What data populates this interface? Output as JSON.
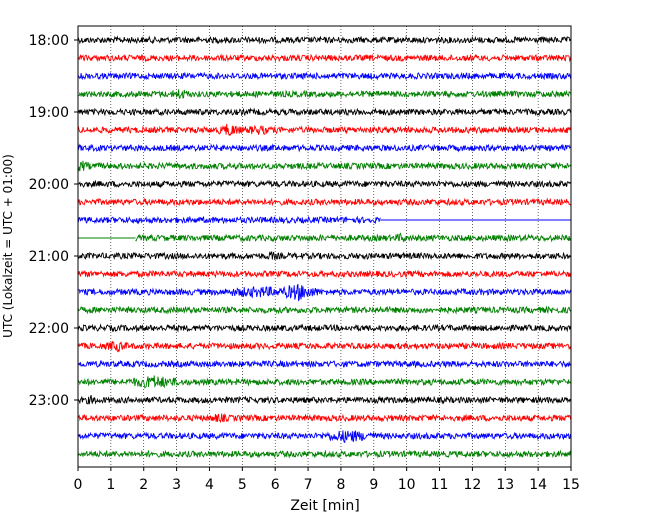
{
  "chart_data": {
    "type": "line",
    "title": "",
    "xlabel": "Zeit  [min]",
    "ylabel": "UTC (Lokalzeit = UTC + 01:00)",
    "xlim": [
      0,
      15
    ],
    "x_ticks": [
      0,
      1,
      2,
      3,
      4,
      5,
      6,
      7,
      8,
      9,
      10,
      11,
      12,
      13,
      14,
      15
    ],
    "y_tick_labels": [
      "18:00",
      "19:00",
      "20:00",
      "21:00",
      "22:00",
      "23:00"
    ],
    "y_tick_rows": [
      0,
      4,
      8,
      12,
      16,
      20
    ],
    "grid": "vertical dotted",
    "colors": [
      "#000000",
      "#ff0000",
      "#0000ff",
      "#008000"
    ],
    "series": [
      {
        "start": "18:00",
        "color": "#000000",
        "amplitude": 3,
        "events": []
      },
      {
        "start": "18:15",
        "color": "#ff0000",
        "amplitude": 3,
        "events": []
      },
      {
        "start": "18:30",
        "color": "#0000ff",
        "amplitude": 3,
        "events": []
      },
      {
        "start": "18:45",
        "color": "#008000",
        "amplitude": 3,
        "events": [
          {
            "t": 3.1,
            "amp": 6,
            "dur": 0.3
          }
        ]
      },
      {
        "start": "19:00",
        "color": "#000000",
        "amplitude": 3,
        "events": []
      },
      {
        "start": "19:15",
        "color": "#ff0000",
        "amplitude": 3,
        "events": [
          {
            "t": 4.6,
            "amp": 7,
            "dur": 0.4
          },
          {
            "t": 5.5,
            "amp": 5,
            "dur": 0.6
          }
        ]
      },
      {
        "start": "19:30",
        "color": "#0000ff",
        "amplitude": 3,
        "events": []
      },
      {
        "start": "19:45",
        "color": "#008000",
        "amplitude": 3,
        "events": [
          {
            "t": 0.1,
            "amp": 6,
            "dur": 0.3
          }
        ]
      },
      {
        "start": "20:00",
        "color": "#000000",
        "amplitude": 3,
        "events": []
      },
      {
        "start": "20:15",
        "color": "#ff0000",
        "amplitude": 3,
        "events": []
      },
      {
        "start": "20:30",
        "color": "#0000ff",
        "amplitude": 3,
        "events": [],
        "data_end": 9.2
      },
      {
        "start": "20:45",
        "color": "#008000",
        "amplitude": 3,
        "events": [
          {
            "t": 9.8,
            "amp": 5,
            "dur": 0.2
          }
        ],
        "data_start": 1.75
      },
      {
        "start": "21:00",
        "color": "#000000",
        "amplitude": 3,
        "events": [
          {
            "t": 5.9,
            "amp": 5,
            "dur": 0.2
          }
        ]
      },
      {
        "start": "21:15",
        "color": "#ff0000",
        "amplitude": 3,
        "events": []
      },
      {
        "start": "21:30",
        "color": "#0000ff",
        "amplitude": 3,
        "events": [
          {
            "t": 5.5,
            "amp": 6,
            "dur": 1.2
          },
          {
            "t": 6.7,
            "amp": 9,
            "dur": 0.7
          }
        ]
      },
      {
        "start": "21:45",
        "color": "#008000",
        "amplitude": 3,
        "events": []
      },
      {
        "start": "22:00",
        "color": "#000000",
        "amplitude": 3,
        "events": []
      },
      {
        "start": "22:15",
        "color": "#ff0000",
        "amplitude": 3,
        "events": [
          {
            "t": 1.2,
            "amp": 6,
            "dur": 0.4
          }
        ]
      },
      {
        "start": "22:30",
        "color": "#0000ff",
        "amplitude": 3,
        "events": []
      },
      {
        "start": "22:45",
        "color": "#008000",
        "amplitude": 3,
        "events": [
          {
            "t": 2.3,
            "amp": 7,
            "dur": 0.9
          }
        ]
      },
      {
        "start": "23:00",
        "color": "#000000",
        "amplitude": 3,
        "events": [
          {
            "t": 0.4,
            "amp": 5,
            "dur": 0.2
          }
        ]
      },
      {
        "start": "23:15",
        "color": "#ff0000",
        "amplitude": 3,
        "events": [
          {
            "t": 4.3,
            "amp": 5,
            "dur": 0.3
          }
        ]
      },
      {
        "start": "23:30",
        "color": "#0000ff",
        "amplitude": 3,
        "events": [
          {
            "t": 8.2,
            "amp": 7,
            "dur": 0.8
          },
          {
            "t": 8.9,
            "amp": 5,
            "dur": 0.2
          }
        ]
      },
      {
        "start": "23:45",
        "color": "#008000",
        "amplitude": 3,
        "events": []
      }
    ]
  }
}
